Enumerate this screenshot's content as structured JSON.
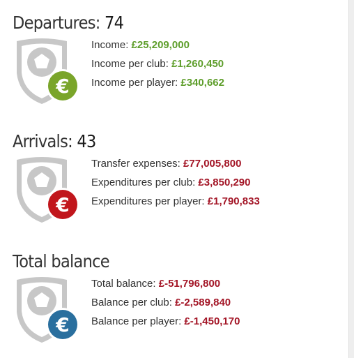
{
  "departures": {
    "label": "Departures:",
    "count": "74",
    "icon": "shield-euro-icon",
    "euro_color": "#7aa52a",
    "stats": [
      {
        "label": "Income: ",
        "value": "£25,209,000"
      },
      {
        "label": "Income per club: ",
        "value": "£1,260,450"
      },
      {
        "label": "Income per player: ",
        "value": "£340,662"
      }
    ]
  },
  "arrivals": {
    "label": "Arrivals:",
    "count": "43",
    "icon": "shield-euro-icon",
    "euro_color": "#c1161c",
    "stats": [
      {
        "label": "Transfer expenses: ",
        "value": "£77,005,800"
      },
      {
        "label": "Expenditures per club: ",
        "value": "£3,850,290"
      },
      {
        "label": "Expenditures per player: ",
        "value": "£1,790,833"
      }
    ]
  },
  "total": {
    "label": "Total balance",
    "icon": "shield-euro-icon",
    "euro_color": "#2a6f9e",
    "stats": [
      {
        "label": "Total balance: ",
        "value": "£-51,796,800"
      },
      {
        "label": "Balance per club: ",
        "value": "£-2,589,840"
      },
      {
        "label": "Balance per player: ",
        "value": "£-1,450,170"
      }
    ]
  }
}
